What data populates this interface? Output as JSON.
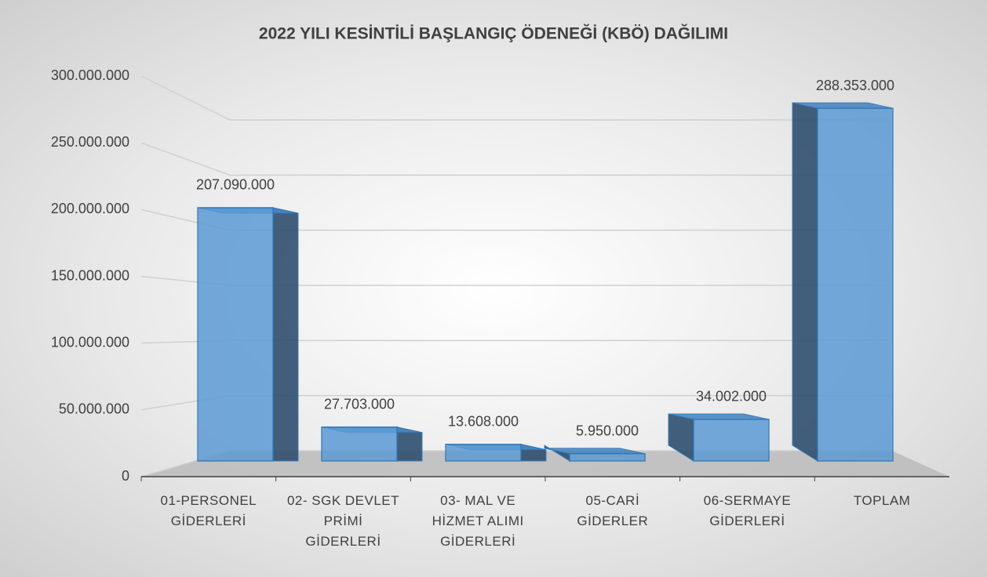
{
  "chart_data": {
    "type": "bar3d",
    "title": "2022 YILI KESİNTİLİ BAŞLANGIÇ ÖDENEĞİ (KBÖ) DAĞILIMI",
    "categories": [
      "01-PERSONEL GİDERLERİ",
      "02- SGK DEVLET PRİMİ GİDERLERİ",
      "03- MAL VE HİZMET ALIMI GİDERLERİ",
      "05-CARİ GİDERLER",
      "06-SERMAYE GİDERLERİ",
      "TOPLAM"
    ],
    "values": [
      207090000,
      27703000,
      13608000,
      5950000,
      34002000,
      288353000
    ],
    "value_labels": [
      "207.090.000",
      "27.703.000",
      "13.608.000",
      "5.950.000",
      "34.002.000",
      "288.353.000"
    ],
    "color": "#5b9bd5",
    "ylim": [
      0,
      300000000
    ],
    "yticks": [
      0,
      {
        "value": 50000000,
        "label": "50.000.000"
      },
      {
        "value": 100000000,
        "label": "100.000.000"
      },
      {
        "value": 150000000,
        "label": "150.000.000"
      },
      {
        "value": 200000000,
        "label": "200.000.000"
      },
      {
        "value": 250000000,
        "label": "250.000.000"
      },
      {
        "value": 300000000,
        "label": "300.000.000"
      }
    ],
    "grid": true
  }
}
